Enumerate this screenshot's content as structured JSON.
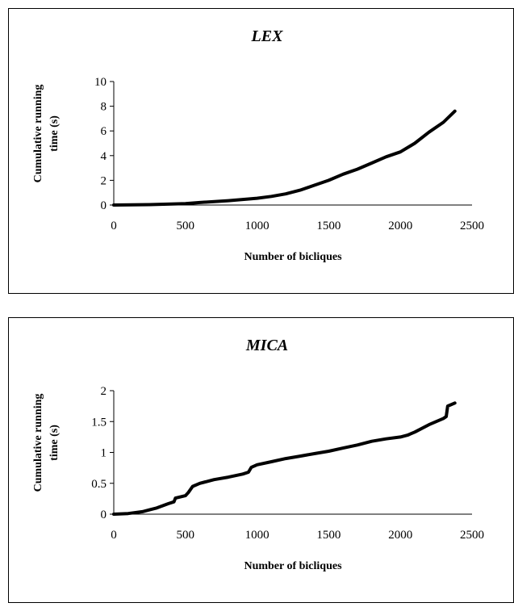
{
  "chart_data": [
    {
      "type": "line",
      "title": "LEX",
      "xlabel": "Number of bicliques",
      "ylabel_lines": [
        "Cumulative running",
        "time (s)"
      ],
      "xlim": [
        0,
        2500
      ],
      "ylim": [
        0,
        10
      ],
      "xticks": [
        0,
        500,
        1000,
        1500,
        2000,
        2500
      ],
      "yticks": [
        0,
        2,
        4,
        6,
        8,
        10
      ],
      "grid": false,
      "series": [
        {
          "x": [
            0,
            250,
            500,
            600,
            800,
            1000,
            1100,
            1200,
            1300,
            1400,
            1500,
            1600,
            1700,
            1800,
            1900,
            2000,
            2100,
            2200,
            2300,
            2380
          ],
          "y": [
            0,
            0.03,
            0.12,
            0.2,
            0.35,
            0.55,
            0.7,
            0.9,
            1.2,
            1.6,
            2.0,
            2.5,
            2.9,
            3.4,
            3.9,
            4.3,
            5.0,
            5.9,
            6.7,
            7.6
          ]
        }
      ]
    },
    {
      "type": "line",
      "title": "MICA",
      "xlabel": "Number of bicliques",
      "ylabel_lines": [
        "Cumulative running",
        "time (s)"
      ],
      "xlim": [
        0,
        2500
      ],
      "ylim": [
        0,
        2
      ],
      "xticks": [
        0,
        500,
        1000,
        1500,
        2000,
        2500
      ],
      "yticks": [
        0,
        0.5,
        1,
        1.5,
        2
      ],
      "grid": false,
      "series": [
        {
          "x": [
            0,
            100,
            200,
            250,
            300,
            380,
            420,
            430,
            500,
            520,
            550,
            600,
            700,
            800,
            900,
            940,
            960,
            1000,
            1100,
            1200,
            1300,
            1400,
            1500,
            1600,
            1700,
            1800,
            1900,
            2000,
            2050,
            2100,
            2200,
            2300,
            2320,
            2330,
            2380
          ],
          "y": [
            0,
            0.01,
            0.04,
            0.07,
            0.1,
            0.17,
            0.2,
            0.26,
            0.3,
            0.35,
            0.45,
            0.5,
            0.56,
            0.6,
            0.65,
            0.68,
            0.76,
            0.8,
            0.85,
            0.9,
            0.94,
            0.98,
            1.02,
            1.07,
            1.12,
            1.18,
            1.22,
            1.25,
            1.28,
            1.33,
            1.45,
            1.55,
            1.58,
            1.75,
            1.8
          ]
        }
      ]
    }
  ]
}
